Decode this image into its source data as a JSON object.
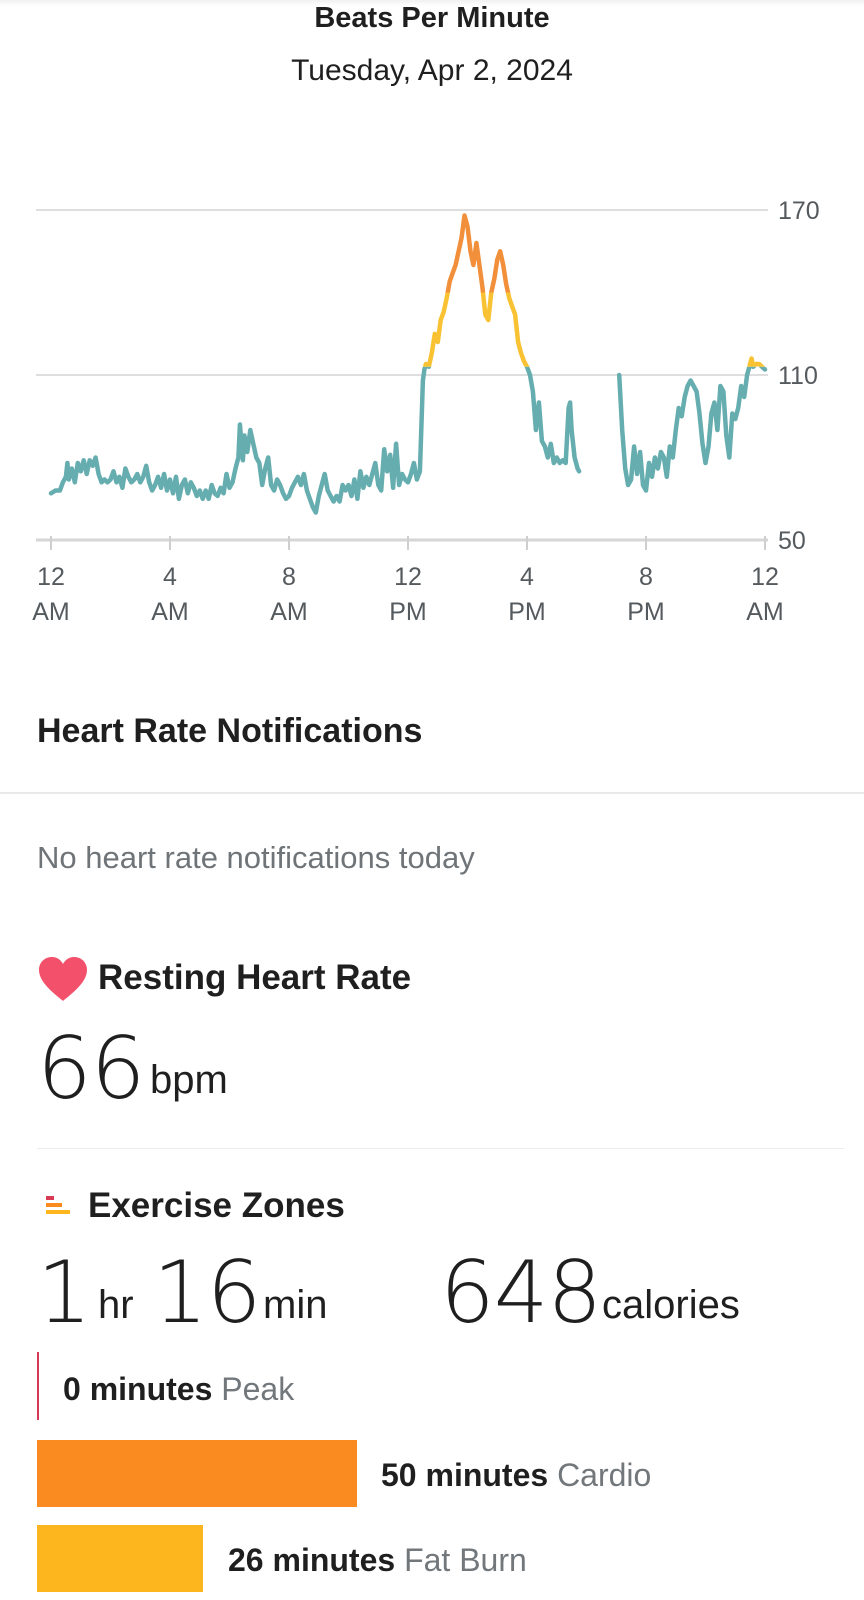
{
  "header": {
    "title": "Beats Per Minute",
    "date": "Tuesday, Apr 2, 2024"
  },
  "chart_data": {
    "type": "line",
    "title": "Beats Per Minute",
    "x_unit": "hour of day",
    "xlim": [
      0,
      24
    ],
    "ylim": [
      50,
      170
    ],
    "y_ticks": [
      170,
      110,
      50
    ],
    "x_ticks": [
      {
        "value": 0,
        "line1": "12",
        "line2": "AM"
      },
      {
        "value": 4,
        "line1": "4",
        "line2": "AM"
      },
      {
        "value": 8,
        "line1": "8",
        "line2": "AM"
      },
      {
        "value": 12,
        "line1": "12",
        "line2": "PM"
      },
      {
        "value": 16,
        "line1": "4",
        "line2": "PM"
      },
      {
        "value": 20,
        "line1": "8",
        "line2": "PM"
      },
      {
        "value": 24,
        "line1": "12",
        "line2": "AM"
      }
    ],
    "grid": true,
    "zone_colors": {
      "normal": "#66adb0",
      "fat_burn": "#f8c233",
      "cardio": "#f28f3b"
    },
    "zone_thresholds": {
      "fat_burn": 113,
      "cardio": 140
    },
    "series": [
      {
        "segments": [
          [
            [
              0,
              67
            ],
            [
              0.15,
              68
            ],
            [
              0.3,
              68
            ],
            [
              0.4,
              71
            ],
            [
              0.5,
              73
            ],
            [
              0.55,
              78
            ],
            [
              0.6,
              72
            ],
            [
              0.7,
              76
            ],
            [
              0.8,
              71
            ],
            [
              0.9,
              78
            ],
            [
              1.0,
              75
            ],
            [
              1.1,
              79
            ],
            [
              1.2,
              74
            ],
            [
              1.3,
              79
            ],
            [
              1.4,
              77
            ],
            [
              1.5,
              80
            ],
            [
              1.6,
              74
            ],
            [
              1.7,
              71
            ],
            [
              1.8,
              72
            ],
            [
              1.9,
              71
            ],
            [
              2.0,
              72
            ],
            [
              2.1,
              75
            ],
            [
              2.2,
              71
            ],
            [
              2.3,
              73
            ],
            [
              2.4,
              69
            ],
            [
              2.5,
              76
            ],
            [
              2.6,
              73
            ],
            [
              2.7,
              71
            ],
            [
              2.8,
              72
            ],
            [
              2.9,
              74
            ],
            [
              3.0,
              71
            ],
            [
              3.1,
              73
            ],
            [
              3.2,
              77
            ],
            [
              3.3,
              71
            ],
            [
              3.4,
              68
            ],
            [
              3.5,
              70
            ],
            [
              3.6,
              73
            ],
            [
              3.7,
              69
            ],
            [
              3.8,
              74
            ],
            [
              3.9,
              68
            ],
            [
              4.0,
              72
            ],
            [
              4.1,
              67
            ],
            [
              4.2,
              73
            ],
            [
              4.3,
              65
            ],
            [
              4.4,
              70
            ],
            [
              4.5,
              72
            ],
            [
              4.6,
              67
            ],
            [
              4.7,
              71
            ],
            [
              4.8,
              69
            ],
            [
              4.9,
              66
            ],
            [
              5.0,
              68
            ],
            [
              5.1,
              65
            ],
            [
              5.2,
              68
            ],
            [
              5.3,
              65
            ],
            [
              5.4,
              70
            ],
            [
              5.5,
              67
            ],
            [
              5.6,
              66
            ],
            [
              5.7,
              69
            ],
            [
              5.8,
              67
            ],
            [
              5.9,
              74
            ],
            [
              6.0,
              69
            ],
            [
              6.1,
              71
            ],
            [
              6.2,
              76
            ],
            [
              6.3,
              80
            ],
            [
              6.35,
              92
            ],
            [
              6.45,
              79
            ],
            [
              6.5,
              88
            ],
            [
              6.6,
              82
            ],
            [
              6.7,
              90
            ],
            [
              6.8,
              85
            ],
            [
              6.9,
              80
            ],
            [
              7.0,
              78
            ],
            [
              7.1,
              70
            ],
            [
              7.2,
              76
            ],
            [
              7.3,
              80
            ],
            [
              7.4,
              70
            ],
            [
              7.5,
              68
            ],
            [
              7.6,
              72
            ],
            [
              7.7,
              70
            ],
            [
              7.8,
              67
            ],
            [
              7.9,
              65
            ],
            [
              8.0,
              66
            ],
            [
              8.1,
              69
            ],
            [
              8.2,
              71
            ],
            [
              8.3,
              73
            ],
            [
              8.4,
              70
            ],
            [
              8.5,
              74
            ],
            [
              8.6,
              68
            ],
            [
              8.7,
              65
            ],
            [
              8.8,
              62
            ],
            [
              8.9,
              60
            ],
            [
              9.0,
              66
            ],
            [
              9.1,
              70
            ],
            [
              9.2,
              74
            ],
            [
              9.3,
              68
            ],
            [
              9.4,
              66
            ],
            [
              9.5,
              64
            ],
            [
              9.6,
              66
            ],
            [
              9.7,
              64
            ],
            [
              9.8,
              70
            ],
            [
              9.9,
              68
            ],
            [
              10.0,
              70
            ],
            [
              10.1,
              66
            ],
            [
              10.2,
              72
            ],
            [
              10.3,
              65
            ],
            [
              10.4,
              75
            ],
            [
              10.5,
              69
            ],
            [
              10.6,
              73
            ],
            [
              10.7,
              70
            ],
            [
              10.8,
              74
            ],
            [
              10.9,
              78
            ],
            [
              11.0,
              70
            ],
            [
              11.1,
              68
            ],
            [
              11.2,
              83
            ],
            [
              11.3,
              75
            ],
            [
              11.4,
              81
            ],
            [
              11.5,
              69
            ],
            [
              11.6,
              85
            ],
            [
              11.7,
              70
            ],
            [
              11.8,
              74
            ],
            [
              11.9,
              72
            ],
            [
              12.0,
              71
            ],
            [
              12.1,
              74
            ],
            [
              12.2,
              78
            ],
            [
              12.3,
              72
            ],
            [
              12.4,
              75
            ],
            [
              12.5,
              108
            ],
            [
              12.55,
              112
            ],
            [
              12.6,
              114
            ],
            [
              12.7,
              113
            ],
            [
              12.8,
              118
            ],
            [
              12.9,
              125
            ],
            [
              13.0,
              122
            ],
            [
              13.1,
              130
            ],
            [
              13.2,
              133
            ],
            [
              13.3,
              138
            ],
            [
              13.4,
              144
            ],
            [
              13.5,
              147
            ],
            [
              13.6,
              150
            ],
            [
              13.7,
              155
            ],
            [
              13.8,
              160
            ],
            [
              13.9,
              168
            ],
            [
              14.0,
              164
            ],
            [
              14.1,
              155
            ],
            [
              14.2,
              150
            ],
            [
              14.3,
              158
            ],
            [
              14.4,
              150
            ],
            [
              14.5,
              142
            ],
            [
              14.6,
              132
            ],
            [
              14.7,
              130
            ],
            [
              14.8,
              140
            ],
            [
              14.9,
              145
            ],
            [
              15.0,
              152
            ],
            [
              15.1,
              155
            ],
            [
              15.2,
              150
            ],
            [
              15.3,
              143
            ],
            [
              15.4,
              138
            ],
            [
              15.5,
              135
            ],
            [
              15.6,
              132
            ],
            [
              15.7,
              122
            ],
            [
              15.8,
              118
            ],
            [
              15.9,
              115
            ],
            [
              16.0,
              113
            ],
            [
              16.1,
              110
            ],
            [
              16.2,
              104
            ],
            [
              16.3,
              90
            ],
            [
              16.4,
              100
            ],
            [
              16.5,
              86
            ],
            [
              16.6,
              84
            ],
            [
              16.7,
              80
            ],
            [
              16.8,
              85
            ],
            [
              16.9,
              78
            ],
            [
              17.0,
              80
            ],
            [
              17.1,
              78
            ],
            [
              17.2,
              79
            ],
            [
              17.3,
              78
            ],
            [
              17.4,
              98
            ],
            [
              17.45,
              100
            ],
            [
              17.5,
              90
            ],
            [
              17.6,
              80
            ],
            [
              17.7,
              76
            ],
            [
              17.75,
              75
            ]
          ],
          [
            [
              19.1,
              110
            ],
            [
              19.2,
              90
            ],
            [
              19.3,
              76
            ],
            [
              19.4,
              70
            ],
            [
              19.5,
              72
            ],
            [
              19.6,
              84
            ],
            [
              19.7,
              74
            ],
            [
              19.8,
              82
            ],
            [
              19.9,
              70
            ],
            [
              20.0,
              68
            ],
            [
              20.1,
              78
            ],
            [
              20.2,
              73
            ],
            [
              20.3,
              80
            ],
            [
              20.4,
              76
            ],
            [
              20.5,
              82
            ],
            [
              20.6,
              80
            ],
            [
              20.7,
              73
            ],
            [
              20.8,
              84
            ],
            [
              20.9,
              80
            ],
            [
              21.0,
              90
            ],
            [
              21.1,
              98
            ],
            [
              21.2,
              95
            ],
            [
              21.3,
              102
            ],
            [
              21.4,
              106
            ],
            [
              21.5,
              108
            ],
            [
              21.6,
              106
            ],
            [
              21.7,
              104
            ],
            [
              21.8,
              96
            ],
            [
              21.9,
              85
            ],
            [
              22.0,
              78
            ],
            [
              22.1,
              84
            ],
            [
              22.2,
              96
            ],
            [
              22.3,
              100
            ],
            [
              22.4,
              90
            ],
            [
              22.5,
              106
            ],
            [
              22.6,
              104
            ],
            [
              22.7,
              88
            ],
            [
              22.8,
              80
            ],
            [
              22.9,
              96
            ],
            [
              23.0,
              94
            ],
            [
              23.1,
              98
            ],
            [
              23.2,
              106
            ],
            [
              23.3,
              102
            ],
            [
              23.4,
              110
            ],
            [
              23.5,
              114
            ],
            [
              23.55,
              116
            ],
            [
              23.6,
              113
            ],
            [
              23.7,
              114
            ],
            [
              23.8,
              114
            ],
            [
              23.9,
              113
            ],
            [
              24.0,
              112
            ]
          ]
        ]
      }
    ]
  },
  "notifications": {
    "title": "Heart Rate Notifications",
    "empty_text": "No heart rate notifications today"
  },
  "resting_heart_rate": {
    "title": "Resting Heart Rate",
    "value": "66",
    "unit": "bpm",
    "icon": "heart-icon",
    "icon_color": "#f3506b"
  },
  "exercise_zones": {
    "title": "Exercise Zones",
    "icon": "zones-bars-icon",
    "hours": "1",
    "hours_unit": "hr",
    "minutes": "16",
    "minutes_unit": "min",
    "calories": "648",
    "calories_unit": "calories",
    "zones": [
      {
        "minutes_text": "0 minutes",
        "name": "Peak",
        "minutes": 0,
        "color": "#d83a55"
      },
      {
        "minutes_text": "50 minutes",
        "name": "Cardio",
        "minutes": 50,
        "color": "#f98b20"
      },
      {
        "minutes_text": "26 minutes",
        "name": "Fat Burn",
        "minutes": 26,
        "color": "#fdb61d"
      }
    ]
  }
}
